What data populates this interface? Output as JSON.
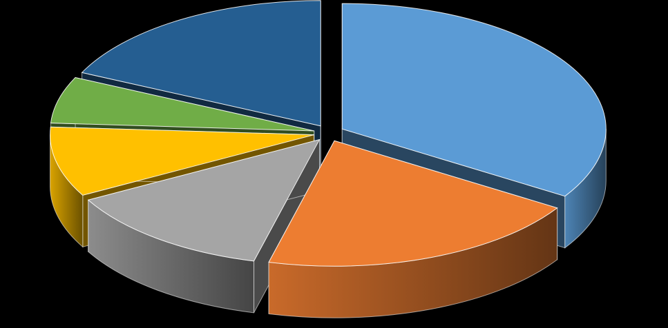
{
  "chart_data": {
    "type": "pie",
    "style": "3d-exploded",
    "title": "",
    "legend": "none",
    "data_labels": "none",
    "slices": [
      {
        "value": 34,
        "color": "#5B9BD5"
      },
      {
        "value": 20,
        "color": "#ED7D31"
      },
      {
        "value": 13,
        "color": "#A5A5A5"
      },
      {
        "value": 9,
        "color": "#FFC000"
      },
      {
        "value": 6,
        "color": "#70AD47"
      },
      {
        "value": 18,
        "color": "#255E91"
      }
    ]
  }
}
